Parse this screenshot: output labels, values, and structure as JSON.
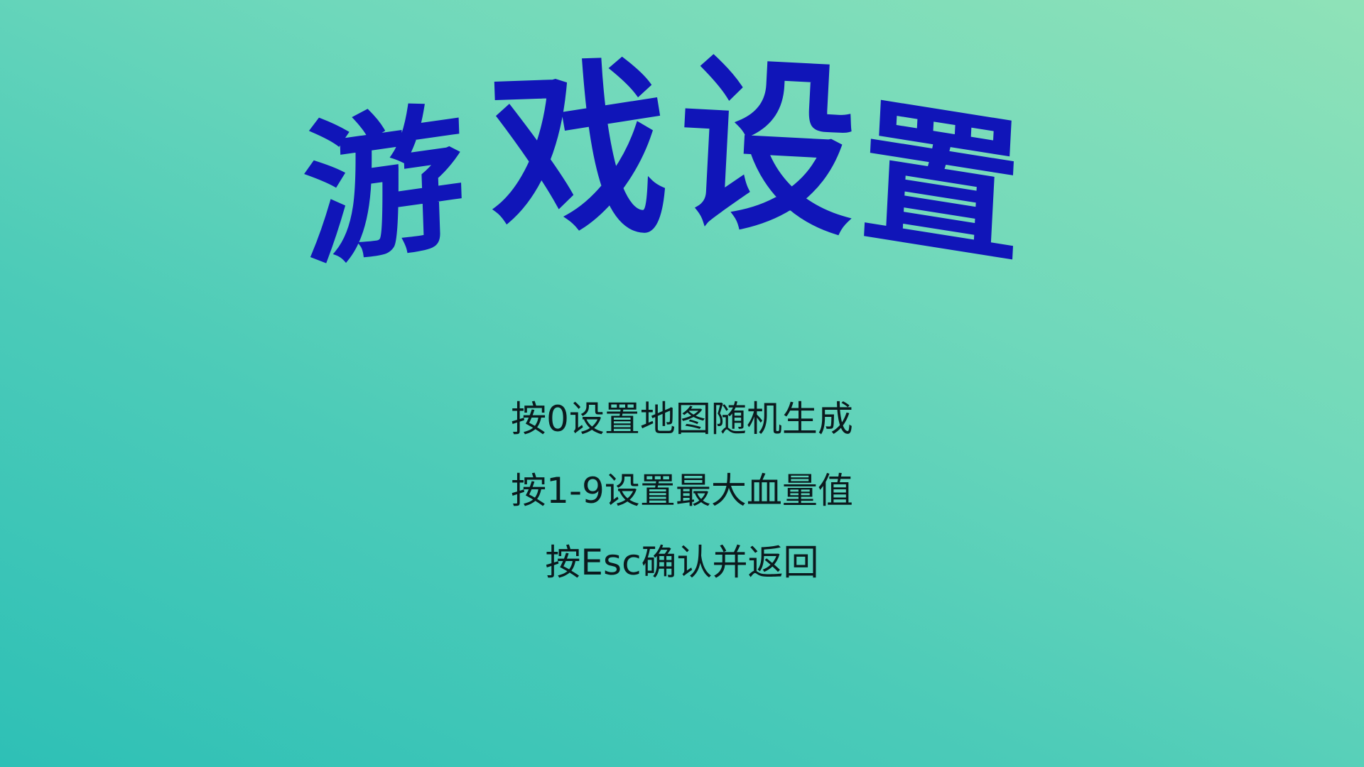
{
  "title": {
    "chars": [
      "游",
      "戏",
      "设",
      "置"
    ],
    "color": "#1015b8"
  },
  "instructions": [
    "按0设置地图随机生成",
    "按1-9设置最大血量值",
    "按Esc确认并返回"
  ],
  "colors": {
    "background_top_right": "#8fe2b8",
    "background_bottom_left": "#2ec0b6",
    "text": "#0b1a1e"
  }
}
